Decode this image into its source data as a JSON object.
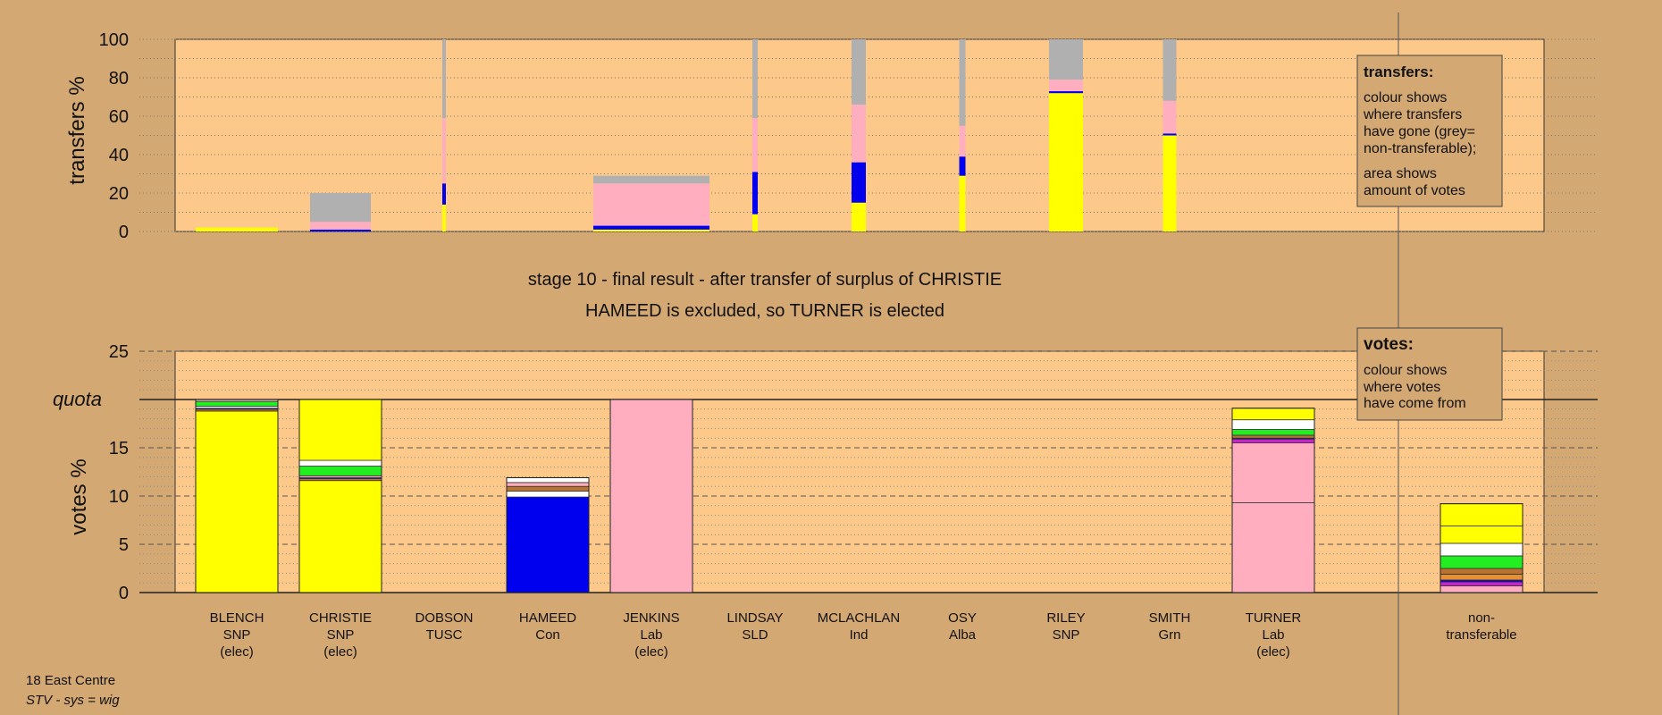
{
  "header": {
    "title_line1": "stage 10 - final result - after transfer of surplus of CHRISTIE",
    "title_line2": "HAMEED is excluded, so TURNER is elected"
  },
  "footer": {
    "ward": "18 East Centre",
    "system": "STV - sys = wig"
  },
  "legend_transfers": {
    "title": "transfers:",
    "lines": [
      "colour shows",
      "where transfers",
      "have gone (grey=",
      "non-transferable);"
    ],
    "lines2": [
      "area shows",
      "amount of votes"
    ]
  },
  "legend_votes": {
    "title": "votes:",
    "lines": [
      "colour shows",
      "where votes",
      "have come from"
    ]
  },
  "colors": {
    "background": "#d4a873",
    "plot_bg": "#fdc98a",
    "SNP": "#ffff00",
    "Con": "#0000ee",
    "Lab": "#ffaec0",
    "green": "#22ee22",
    "nontransferable": "#b0b0b0",
    "white": "#ffffff",
    "brown": "#b87333",
    "purple": "#cc22cc",
    "orange": "#e89030"
  },
  "chart_data": [
    {
      "type": "bar",
      "title": "",
      "ylabel": "transfers %",
      "ylim": [
        0,
        100
      ],
      "yticks": [
        "0",
        "20",
        "40",
        "60",
        "80",
        "100"
      ],
      "note": "stacked transfer bars; bar width = amount of votes",
      "bars": [
        {
          "candidate": "BLENCH",
          "segments": [
            {
              "color": "SNP",
              "value": 2
            }
          ]
        },
        {
          "candidate": "CHRISTIE",
          "segments": [
            {
              "color": "Con",
              "value": 1
            },
            {
              "color": "Lab",
              "value": 4
            },
            {
              "color": "nontransferable",
              "value": 15
            }
          ]
        },
        {
          "candidate": "DOBSON",
          "segments": [
            {
              "color": "SNP",
              "value": 14
            },
            {
              "color": "Con",
              "value": 11
            },
            {
              "color": "Lab",
              "value": 34
            },
            {
              "color": "nontransferable",
              "value": 41
            }
          ]
        },
        {
          "candidate": "JENKINS",
          "segments": [
            {
              "color": "SNP",
              "value": 1
            },
            {
              "color": "Con",
              "value": 2
            },
            {
              "color": "Lab",
              "value": 22
            },
            {
              "color": "nontransferable",
              "value": 4
            }
          ]
        },
        {
          "candidate": "LINDSAY",
          "segments": [
            {
              "color": "SNP",
              "value": 9
            },
            {
              "color": "Con",
              "value": 22
            },
            {
              "color": "Lab",
              "value": 28
            },
            {
              "color": "nontransferable",
              "value": 41
            }
          ]
        },
        {
          "candidate": "MCLACHLAN",
          "segments": [
            {
              "color": "SNP",
              "value": 15
            },
            {
              "color": "Con",
              "value": 21
            },
            {
              "color": "Lab",
              "value": 30
            },
            {
              "color": "nontransferable",
              "value": 34
            }
          ]
        },
        {
          "candidate": "OSY",
          "segments": [
            {
              "color": "SNP",
              "value": 29
            },
            {
              "color": "Con",
              "value": 10
            },
            {
              "color": "Lab",
              "value": 16
            },
            {
              "color": "nontransferable",
              "value": 45
            }
          ]
        },
        {
          "candidate": "RILEY",
          "segments": [
            {
              "color": "SNP",
              "value": 72
            },
            {
              "color": "Con",
              "value": 1
            },
            {
              "color": "Lab",
              "value": 6
            },
            {
              "color": "nontransferable",
              "value": 21
            }
          ]
        },
        {
          "candidate": "SMITH",
          "segments": [
            {
              "color": "SNP",
              "value": 50
            },
            {
              "color": "Con",
              "value": 1
            },
            {
              "color": "Lab",
              "value": 17
            },
            {
              "color": "nontransferable",
              "value": 32
            }
          ]
        }
      ]
    },
    {
      "type": "bar",
      "title": "",
      "ylabel": "votes %",
      "ylim": [
        0,
        25
      ],
      "yticks": [
        "0",
        "5",
        "10",
        "15",
        "quota",
        "25"
      ],
      "quota": 20,
      "quota_label": "quota",
      "categories": [
        "BLENCH",
        "CHRISTIE",
        "DOBSON",
        "HAMEED",
        "JENKINS",
        "LINDSAY",
        "MCLACHLAN",
        "OSY",
        "RILEY",
        "SMITH",
        "TURNER",
        "non-transferable"
      ],
      "category_labels": [
        [
          "BLENCH",
          "SNP",
          "(elec)"
        ],
        [
          "CHRISTIE",
          "SNP",
          "(elec)"
        ],
        [
          "DOBSON",
          "TUSC",
          ""
        ],
        [
          "HAMEED",
          "Con",
          ""
        ],
        [
          "JENKINS",
          "Lab",
          "(elec)"
        ],
        [
          "LINDSAY",
          "SLD",
          ""
        ],
        [
          "MCLACHLAN",
          "Ind",
          ""
        ],
        [
          "OSY",
          "Alba",
          ""
        ],
        [
          "RILEY",
          "SNP",
          ""
        ],
        [
          "SMITH",
          "Grn",
          ""
        ],
        [
          "TURNER",
          "Lab",
          "(elec)"
        ],
        [
          "non-",
          "transferable",
          ""
        ]
      ],
      "values": [
        20,
        20,
        0,
        11.9,
        20,
        0,
        0,
        0,
        0,
        0,
        19.1,
        9.2
      ],
      "stacks": [
        [
          {
            "color": "SNP",
            "value": 18.8
          },
          {
            "color": "brown",
            "value": 0.2
          },
          {
            "color": "Con",
            "value": 0.1
          },
          {
            "color": "white",
            "value": 0.2
          },
          {
            "color": "green",
            "value": 0.5
          },
          {
            "color": "Lab",
            "value": 0.2
          }
        ],
        [
          {
            "color": "SNP",
            "value": 11.6
          },
          {
            "color": "brown",
            "value": 0.2
          },
          {
            "color": "Con",
            "value": 0.1
          },
          {
            "color": "Lab",
            "value": 0.2
          },
          {
            "color": "green",
            "value": 1.0
          },
          {
            "color": "white",
            "value": 0.6
          },
          {
            "color": "SNP",
            "value": 6.3
          }
        ],
        [],
        [
          {
            "color": "Con",
            "value": 9.9
          },
          {
            "color": "white",
            "value": 0.6
          },
          {
            "color": "brown",
            "value": 0.5
          },
          {
            "color": "Lab",
            "value": 0.4
          },
          {
            "color": "white",
            "value": 0.5
          }
        ],
        [
          {
            "color": "Lab",
            "value": 20
          }
        ],
        [],
        [],
        [],
        [],
        [],
        [
          {
            "color": "Lab",
            "value": 9.3
          },
          {
            "color": "Lab",
            "value": 6.2
          },
          {
            "color": "purple",
            "value": 0.4
          },
          {
            "color": "Con",
            "value": 0.1
          },
          {
            "color": "brown",
            "value": 0.3
          },
          {
            "color": "green",
            "value": 0.6
          },
          {
            "color": "white",
            "value": 1.0
          },
          {
            "color": "SNP",
            "value": 1.2
          }
        ],
        [
          {
            "color": "Lab",
            "value": 0.7
          },
          {
            "color": "purple",
            "value": 0.4
          },
          {
            "color": "Con",
            "value": 0.2
          },
          {
            "color": "orange",
            "value": 0.6
          },
          {
            "color": "brown",
            "value": 0.6
          },
          {
            "color": "green",
            "value": 1.3
          },
          {
            "color": "white",
            "value": 1.3
          },
          {
            "color": "SNP",
            "value": 1.8
          },
          {
            "color": "SNP",
            "value": 2.3
          }
        ]
      ]
    }
  ]
}
